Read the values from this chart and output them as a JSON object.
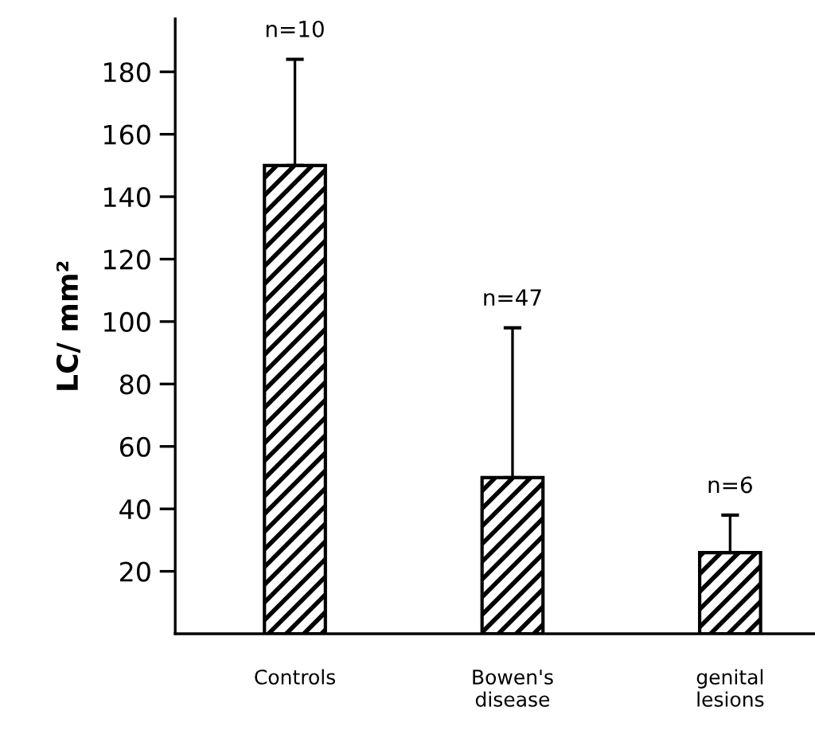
{
  "chart_data": {
    "type": "bar",
    "ylabel": "LC/ mm²",
    "categories": [
      "Controls",
      "Bowen's\ndisease",
      "genital\nlesions"
    ],
    "values": [
      150,
      50,
      26
    ],
    "errors": [
      [
        150,
        184
      ],
      [
        50,
        98
      ],
      [
        26,
        38
      ]
    ],
    "color": "#000000",
    "ylim": [
      0,
      197
    ],
    "yticks": [
      20,
      40,
      60,
      80,
      100,
      120,
      140,
      160,
      180
    ],
    "grid": false,
    "annotations": [
      {
        "text": "n=10",
        "x": "Controls",
        "y": 184
      },
      {
        "text": "n=47",
        "x": "Bowen's\ndisease",
        "y": 98
      },
      {
        "text": "n=6",
        "x": "genital\nlesions",
        "y": 38
      }
    ]
  }
}
